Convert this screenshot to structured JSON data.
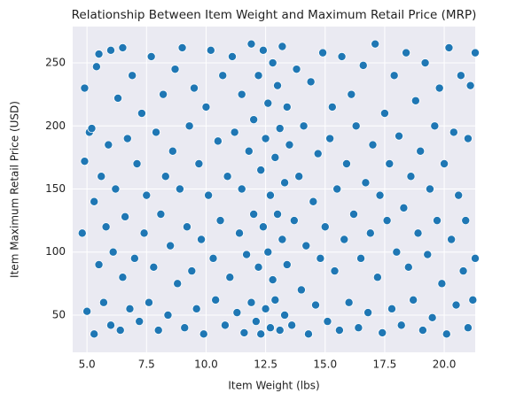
{
  "chart_data": {
    "type": "scatter",
    "title": "Relationship Between Item Weight and Maximum Retail Price (MRP)",
    "x_label": "Item Weight (lbs)",
    "y_label": "Item Maximum Retail Price (USD)",
    "color": "#1f77b4",
    "grid": true,
    "xlim": [
      4.4,
      21.3
    ],
    "ylim": [
      20.5,
      278.8
    ],
    "xticks": [
      {
        "value": 5.0,
        "label": "5.0"
      },
      7.5,
      {
        "value": 10.0,
        "label": "10.0"
      },
      12.5,
      {
        "value": 15.0,
        "label": "15.0"
      },
      17.5,
      {
        "value": 20.0,
        "label": "20.0"
      }
    ],
    "yticks": [
      50,
      100,
      150,
      200,
      250
    ],
    "x": [
      4.8,
      4.9,
      4.9,
      5.0,
      5.1,
      5.2,
      5.3,
      5.3,
      5.4,
      5.5,
      5.5,
      5.6,
      5.7,
      5.8,
      5.9,
      6.0,
      6.0,
      6.1,
      6.2,
      6.3,
      6.4,
      6.5,
      6.5,
      6.6,
      6.7,
      6.8,
      6.9,
      7.0,
      7.1,
      7.2,
      7.3,
      7.4,
      7.5,
      7.6,
      7.7,
      7.8,
      7.9,
      8.0,
      8.1,
      8.2,
      8.3,
      8.4,
      8.5,
      8.6,
      8.7,
      8.8,
      8.9,
      9.0,
      9.1,
      9.2,
      9.3,
      9.4,
      9.5,
      9.6,
      9.7,
      9.8,
      9.9,
      10.0,
      10.1,
      10.2,
      10.3,
      10.4,
      10.5,
      10.6,
      10.7,
      10.8,
      10.9,
      11.0,
      11.1,
      11.2,
      11.3,
      11.4,
      11.5,
      11.5,
      11.6,
      11.7,
      11.8,
      11.9,
      11.9,
      12.0,
      12.0,
      12.1,
      12.2,
      12.2,
      12.3,
      12.3,
      12.4,
      12.4,
      12.5,
      12.5,
      12.6,
      12.6,
      12.7,
      12.7,
      12.8,
      12.8,
      12.9,
      12.9,
      13.0,
      13.0,
      13.1,
      13.1,
      13.2,
      13.2,
      13.3,
      13.3,
      13.4,
      13.4,
      13.5,
      13.6,
      13.7,
      13.8,
      13.9,
      14.0,
      14.1,
      14.2,
      14.3,
      14.4,
      14.5,
      14.6,
      14.7,
      14.8,
      14.9,
      15.0,
      15.1,
      15.2,
      15.3,
      15.4,
      15.5,
      15.6,
      15.7,
      15.8,
      15.9,
      16.0,
      16.1,
      16.2,
      16.3,
      16.4,
      16.5,
      16.6,
      16.7,
      16.8,
      16.9,
      17.0,
      17.1,
      17.2,
      17.3,
      17.4,
      17.5,
      17.6,
      17.7,
      17.8,
      17.9,
      18.0,
      18.1,
      18.2,
      18.3,
      18.4,
      18.5,
      18.6,
      18.7,
      18.8,
      18.9,
      19.0,
      19.1,
      19.2,
      19.3,
      19.4,
      19.5,
      19.6,
      19.7,
      19.8,
      19.9,
      20.0,
      20.1,
      20.2,
      20.3,
      20.4,
      20.5,
      20.6,
      20.7,
      20.8,
      20.9,
      21.0,
      21.0,
      21.1,
      21.2,
      21.3,
      21.3
    ],
    "values": [
      115,
      230,
      172,
      53,
      195,
      198,
      140,
      35,
      247,
      257,
      90,
      160,
      60,
      120,
      185,
      260,
      42,
      100,
      150,
      222,
      38,
      262,
      80,
      128,
      190,
      55,
      240,
      95,
      170,
      45,
      210,
      115,
      145,
      60,
      255,
      88,
      195,
      38,
      130,
      225,
      160,
      50,
      105,
      180,
      245,
      75,
      150,
      262,
      40,
      120,
      200,
      85,
      230,
      55,
      170,
      110,
      35,
      215,
      145,
      260,
      95,
      62,
      188,
      125,
      240,
      42,
      160,
      80,
      255,
      195,
      52,
      115,
      225,
      150,
      36,
      98,
      180,
      265,
      60,
      130,
      205,
      45,
      88,
      240,
      165,
      35,
      120,
      260,
      55,
      190,
      100,
      218,
      145,
      40,
      250,
      78,
      175,
      62,
      130,
      232,
      38,
      198,
      110,
      263,
      155,
      50,
      90,
      215,
      185,
      42,
      125,
      245,
      160,
      70,
      200,
      105,
      35,
      235,
      140,
      58,
      178,
      95,
      258,
      120,
      45,
      190,
      215,
      85,
      150,
      38,
      255,
      110,
      170,
      60,
      225,
      130,
      200,
      40,
      95,
      248,
      155,
      52,
      115,
      185,
      265,
      80,
      145,
      36,
      210,
      125,
      170,
      55,
      240,
      100,
      192,
      42,
      135,
      258,
      88,
      160,
      62,
      220,
      115,
      180,
      38,
      250,
      98,
      150,
      48,
      200,
      125,
      230,
      75,
      170,
      35,
      262,
      110,
      195,
      58,
      145,
      240,
      85,
      125,
      40,
      190,
      232,
      62,
      95,
      258
    ]
  }
}
